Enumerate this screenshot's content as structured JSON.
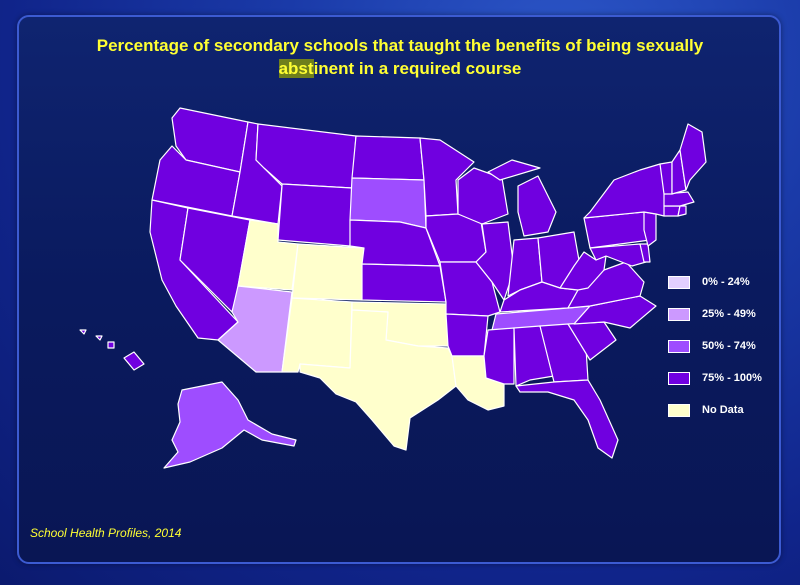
{
  "title_line1": "Percentage of secondary schools that taught the benefits of being sexually",
  "title_line2_highlight": "abst",
  "title_line2_rest": "inent in a required course",
  "source": "School Health Profiles, 2014",
  "colors": {
    "c0_24": "#e2cfff",
    "c25_49": "#cc99ff",
    "c50_74": "#9e4dff",
    "c75_100": "#7000e0",
    "no_data": "#ffffcc"
  },
  "legend": [
    {
      "label": "0% - 24%",
      "color": "#e2cfff"
    },
    {
      "label": "25% - 49%",
      "color": "#cc99ff"
    },
    {
      "label": "50% - 74%",
      "color": "#9e4dff"
    },
    {
      "label": "75% - 100%",
      "color": "#7000e0"
    },
    {
      "label": "No Data",
      "color": "#ffffcc"
    }
  ],
  "states": {
    "WA": "75% - 100%",
    "OR": "75% - 100%",
    "CA": "75% - 100%",
    "NV": "75% - 100%",
    "ID": "75% - 100%",
    "MT": "75% - 100%",
    "WY": "75% - 100%",
    "UT": "No Data",
    "CO": "No Data",
    "AZ": "25% - 49%",
    "NM": "No Data",
    "ND": "75% - 100%",
    "SD": "50% - 74%",
    "NE": "75% - 100%",
    "KS": "75% - 100%",
    "OK": "No Data",
    "TX": "No Data",
    "MN": "75% - 100%",
    "IA": "75% - 100%",
    "MO": "75% - 100%",
    "AR": "75% - 100%",
    "LA": "No Data",
    "WI": "75% - 100%",
    "IL": "75% - 100%",
    "MI": "75% - 100%",
    "IN": "75% - 100%",
    "OH": "75% - 100%",
    "KY": "75% - 100%",
    "TN": "50% - 74%",
    "MS": "75% - 100%",
    "AL": "75% - 100%",
    "GA": "75% - 100%",
    "FL": "75% - 100%",
    "SC": "75% - 100%",
    "NC": "75% - 100%",
    "VA": "75% - 100%",
    "WV": "75% - 100%",
    "PA": "75% - 100%",
    "NY": "75% - 100%",
    "ME": "75% - 100%",
    "NH": "75% - 100%",
    "VT": "75% - 100%",
    "MA": "75% - 100%",
    "CT": "75% - 100%",
    "RI": "75% - 100%",
    "NJ": "75% - 100%",
    "DE": "75% - 100%",
    "MD": "75% - 100%",
    "AK": "50% - 74%",
    "HI": "75% - 100%"
  }
}
